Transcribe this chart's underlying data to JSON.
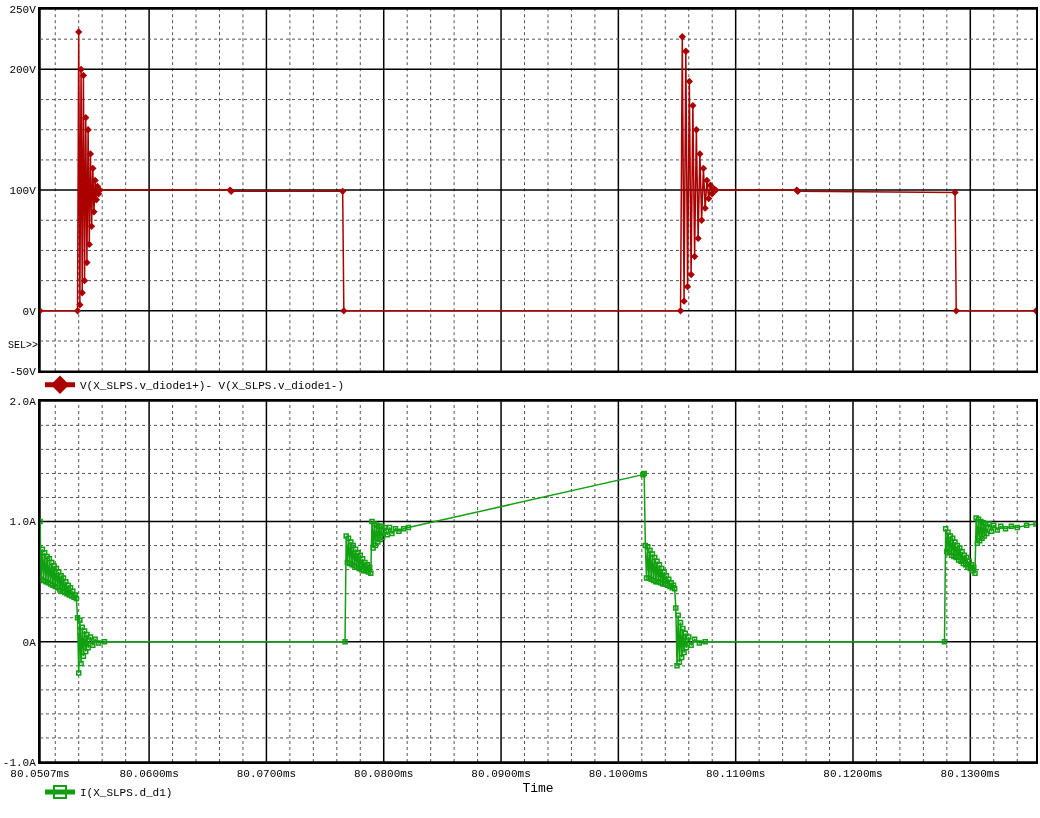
{
  "chart_data": [
    {
      "type": "line",
      "marker": "diamond",
      "legend": "bottom left",
      "grid": true,
      "tick_labels": "y",
      "annotations": [
        "SEL>>"
      ],
      "x": [
        80.0507,
        80.0539,
        80.054,
        80.0541,
        80.0542,
        80.0543,
        80.0544,
        80.0545,
        80.0546,
        80.0547,
        80.0548,
        80.0549,
        80.055,
        80.0551,
        80.0552,
        80.0553,
        80.0554,
        80.0555,
        80.0556,
        80.0557,
        80.0558,
        80.0669,
        80.067,
        80.0765,
        80.0766,
        80.1053,
        80.10545,
        80.1056,
        80.10575,
        80.1059,
        80.10605,
        80.1062,
        80.10635,
        80.1065,
        80.10665,
        80.1068,
        80.10695,
        80.1071,
        80.10725,
        80.1074,
        80.10755,
        80.1077,
        80.10785,
        80.108,
        80.10815,
        80.1083,
        80.1152,
        80.1153,
        80.1287,
        80.1288,
        80.1356
      ],
      "series": [
        {
          "name": "V(X_SLPS.v_diode1+)- V(X_SLPS.v_diode1-)",
          "color": "#aa0000",
          "values": [
            0,
            0,
            231,
            5,
            200,
            15,
            195,
            25,
            160,
            40,
            150,
            55,
            130,
            70,
            118,
            82,
            108,
            92,
            103,
            97,
            100,
            100,
            99,
            99,
            0,
            0,
            227,
            8,
            215,
            20,
            190,
            30,
            170,
            45,
            150,
            60,
            130,
            75,
            118,
            85,
            108,
            93,
            104,
            97,
            101,
            100,
            100,
            99,
            98,
            0,
            0
          ]
        }
      ],
      "xlim": [
        80.0507,
        80.1356
      ],
      "xticks": [
        80.0507,
        {
          "value": 80.052,
          "label": null
        },
        {
          "value": 80.054,
          "label": null
        },
        {
          "value": 80.056,
          "label": null
        },
        {
          "value": 80.058,
          "label": null
        },
        80.06,
        {
          "value": 80.062,
          "label": null
        },
        {
          "value": 80.064,
          "label": null
        },
        {
          "value": 80.066,
          "label": null
        },
        {
          "value": 80.068,
          "label": null
        },
        80.07,
        {
          "value": 80.072,
          "label": null
        },
        {
          "value": 80.074,
          "label": null
        },
        {
          "value": 80.076,
          "label": null
        },
        {
          "value": 80.078,
          "label": null
        },
        80.08,
        {
          "value": 80.082,
          "label": null
        },
        {
          "value": 80.084,
          "label": null
        },
        {
          "value": 80.086,
          "label": null
        },
        {
          "value": 80.088,
          "label": null
        },
        80.09,
        {
          "value": 80.092,
          "label": null
        },
        {
          "value": 80.094,
          "label": null
        },
        {
          "value": 80.096,
          "label": null
        },
        {
          "value": 80.098,
          "label": null
        },
        80.1,
        {
          "value": 80.102,
          "label": null
        },
        {
          "value": 80.104,
          "label": null
        },
        {
          "value": 80.106,
          "label": null
        },
        {
          "value": 80.108,
          "label": null
        },
        80.11,
        {
          "value": 80.112,
          "label": null
        },
        {
          "value": 80.114,
          "label": null
        },
        {
          "value": 80.116,
          "label": null
        },
        {
          "value": 80.118,
          "label": null
        },
        80.12,
        {
          "value": 80.122,
          "label": null
        },
        {
          "value": 80.124,
          "label": null
        },
        {
          "value": 80.126,
          "label": null
        },
        {
          "value": 80.128,
          "label": null
        },
        80.13,
        {
          "value": 80.132,
          "label": null
        },
        {
          "value": 80.134,
          "label": null
        }
      ],
      "ylim": [
        -50,
        250
      ],
      "yticks": [
        {
          "value": -50,
          "label": "-50V"
        },
        {
          "value": -25,
          "label": null
        },
        {
          "value": 0,
          "label": "0V"
        },
        {
          "value": 25,
          "label": null
        },
        {
          "value": 50,
          "label": null
        },
        {
          "value": 75,
          "label": null
        },
        {
          "value": 100,
          "label": "100V"
        },
        {
          "value": 125,
          "label": null
        },
        {
          "value": 150,
          "label": null
        },
        {
          "value": 175,
          "label": null
        },
        {
          "value": 200,
          "label": "200V"
        },
        {
          "value": 225,
          "label": null
        },
        {
          "value": 250,
          "label": "250V"
        }
      ]
    },
    {
      "type": "line",
      "marker": "square",
      "legend": "bottom left",
      "grid": true,
      "xlabel": "Time",
      "x": [
        80.0507,
        80.0508,
        80.0509,
        80.051,
        80.0511,
        80.0512,
        80.0513,
        80.0514,
        80.0515,
        80.0516,
        80.0517,
        80.0518,
        80.0519,
        80.052,
        80.0521,
        80.0522,
        80.0523,
        80.0524,
        80.0525,
        80.0526,
        80.0527,
        80.0528,
        80.0529,
        80.053,
        80.0531,
        80.0532,
        80.0533,
        80.0534,
        80.0535,
        80.0536,
        80.0537,
        80.0538,
        80.0539,
        80.054,
        80.0541,
        80.0542,
        80.0543,
        80.0544,
        80.0545,
        80.0546,
        80.0547,
        80.0548,
        80.055,
        80.0552,
        80.0554,
        80.0557,
        80.0562,
        80.0767,
        80.0768,
        80.0769,
        80.077,
        80.0771,
        80.0772,
        80.0773,
        80.0774,
        80.0775,
        80.0776,
        80.0777,
        80.0778,
        80.0779,
        80.078,
        80.0781,
        80.0782,
        80.0783,
        80.0784,
        80.0785,
        80.0786,
        80.0787,
        80.0788,
        80.0789,
        80.079,
        80.0791,
        80.0792,
        80.0793,
        80.0794,
        80.0795,
        80.0796,
        80.0797,
        80.0798,
        80.0799,
        80.0801,
        80.0803,
        80.0805,
        80.0807,
        80.081,
        80.0813,
        80.0817,
        80.0821,
        80.1021,
        80.1022,
        80.1023,
        80.1024,
        80.1025,
        80.1026,
        80.1027,
        80.1028,
        80.1029,
        80.103,
        80.1031,
        80.1032,
        80.1033,
        80.1034,
        80.1035,
        80.1036,
        80.1037,
        80.1038,
        80.1039,
        80.104,
        80.1041,
        80.1042,
        80.1043,
        80.1044,
        80.1045,
        80.1046,
        80.1047,
        80.1048,
        80.1049,
        80.105,
        80.1051,
        80.1052,
        80.1053,
        80.1054,
        80.1055,
        80.1056,
        80.1057,
        80.1058,
        80.106,
        80.1062,
        80.1065,
        80.1069,
        80.1074,
        80.1278,
        80.1279,
        80.128,
        80.1281,
        80.1282,
        80.1283,
        80.1284,
        80.1285,
        80.1286,
        80.1287,
        80.1288,
        80.1289,
        80.129,
        80.1291,
        80.1292,
        80.1293,
        80.1294,
        80.1295,
        80.1296,
        80.1297,
        80.1298,
        80.1299,
        80.13,
        80.1301,
        80.1302,
        80.1303,
        80.1304,
        80.1305,
        80.1306,
        80.1307,
        80.1308,
        80.1309,
        80.131,
        80.1311,
        80.1312,
        80.1313,
        80.1314,
        80.1316,
        80.1318,
        80.132,
        80.1323,
        80.1326,
        80.133,
        80.1335,
        80.134,
        80.1348,
        80.1356
      ],
      "series": [
        {
          "name": "I(X_SLPS.d_d1)",
          "color": "#10a010",
          "values": [
            1.0,
            0.52,
            0.77,
            0.51,
            0.74,
            0.5,
            0.71,
            0.49,
            0.69,
            0.48,
            0.66,
            0.47,
            0.63,
            0.46,
            0.61,
            0.45,
            0.58,
            0.43,
            0.55,
            0.42,
            0.53,
            0.41,
            0.5,
            0.4,
            0.47,
            0.39,
            0.45,
            0.38,
            0.42,
            0.37,
            0.39,
            0.36,
            0.2,
            -0.26,
            0.18,
            -0.18,
            0.12,
            -0.12,
            0.09,
            -0.08,
            0.06,
            -0.05,
            0.04,
            -0.03,
            0.02,
            -0.01,
            0,
            0,
            0.88,
            0.66,
            0.86,
            0.65,
            0.83,
            0.64,
            0.8,
            0.63,
            0.77,
            0.62,
            0.74,
            0.61,
            0.72,
            0.6,
            0.69,
            0.59,
            0.66,
            0.59,
            0.64,
            0.58,
            0.62,
            0.57,
            1.0,
            0.78,
            0.98,
            0.8,
            0.97,
            0.83,
            0.96,
            0.85,
            0.96,
            0.87,
            0.95,
            0.89,
            0.95,
            0.9,
            0.94,
            0.92,
            0.94,
            0.95,
            1.39,
            1.4,
            0.8,
            0.53,
            0.79,
            0.53,
            0.76,
            0.52,
            0.73,
            0.51,
            0.7,
            0.5,
            0.67,
            0.5,
            0.64,
            0.49,
            0.61,
            0.48,
            0.58,
            0.48,
            0.55,
            0.47,
            0.52,
            0.46,
            0.49,
            0.45,
            0.47,
            0.44,
            0.28,
            -0.2,
            0.22,
            -0.17,
            0.16,
            -0.13,
            0.11,
            -0.09,
            0.07,
            -0.05,
            0.04,
            -0.03,
            0.02,
            -0.01,
            0,
            0,
            0.94,
            0.75,
            0.91,
            0.74,
            0.88,
            0.72,
            0.86,
            0.71,
            0.83,
            0.7,
            0.8,
            0.68,
            0.78,
            0.67,
            0.75,
            0.65,
            0.72,
            0.64,
            0.7,
            0.62,
            0.67,
            0.61,
            0.64,
            0.59,
            0.62,
            0.57,
            1.03,
            0.82,
            1.02,
            0.84,
            1.0,
            0.86,
            0.99,
            0.88,
            0.98,
            0.9,
            0.98,
            0.92,
            0.97,
            0.93,
            0.96,
            0.94,
            0.96,
            0.95,
            0.97,
            0.98
          ]
        }
      ],
      "xlim": [
        80.0507,
        80.1356
      ],
      "xticks": [
        {
          "value": 80.0507,
          "label": "80.0507ms"
        },
        {
          "value": 80.052,
          "label": null
        },
        {
          "value": 80.054,
          "label": null
        },
        {
          "value": 80.056,
          "label": null
        },
        {
          "value": 80.058,
          "label": null
        },
        {
          "value": 80.06,
          "label": "80.0600ms"
        },
        {
          "value": 80.062,
          "label": null
        },
        {
          "value": 80.064,
          "label": null
        },
        {
          "value": 80.066,
          "label": null
        },
        {
          "value": 80.068,
          "label": null
        },
        {
          "value": 80.07,
          "label": "80.0700ms"
        },
        {
          "value": 80.072,
          "label": null
        },
        {
          "value": 80.074,
          "label": null
        },
        {
          "value": 80.076,
          "label": null
        },
        {
          "value": 80.078,
          "label": null
        },
        {
          "value": 80.08,
          "label": "80.0800ms"
        },
        {
          "value": 80.082,
          "label": null
        },
        {
          "value": 80.084,
          "label": null
        },
        {
          "value": 80.086,
          "label": null
        },
        {
          "value": 80.088,
          "label": null
        },
        {
          "value": 80.09,
          "label": "80.0900ms"
        },
        {
          "value": 80.092,
          "label": null
        },
        {
          "value": 80.094,
          "label": null
        },
        {
          "value": 80.096,
          "label": null
        },
        {
          "value": 80.098,
          "label": null
        },
        {
          "value": 80.1,
          "label": "80.1000ms"
        },
        {
          "value": 80.102,
          "label": null
        },
        {
          "value": 80.104,
          "label": null
        },
        {
          "value": 80.106,
          "label": null
        },
        {
          "value": 80.108,
          "label": null
        },
        {
          "value": 80.11,
          "label": "80.1100ms"
        },
        {
          "value": 80.112,
          "label": null
        },
        {
          "value": 80.114,
          "label": null
        },
        {
          "value": 80.116,
          "label": null
        },
        {
          "value": 80.118,
          "label": null
        },
        {
          "value": 80.12,
          "label": "80.1200ms"
        },
        {
          "value": 80.122,
          "label": null
        },
        {
          "value": 80.124,
          "label": null
        },
        {
          "value": 80.126,
          "label": null
        },
        {
          "value": 80.128,
          "label": null
        },
        {
          "value": 80.13,
          "label": "80.1300ms"
        },
        {
          "value": 80.132,
          "label": null
        },
        {
          "value": 80.134,
          "label": null
        }
      ],
      "ylim": [
        -1.0,
        2.0
      ],
      "yticks": [
        {
          "value": -1.0,
          "label": "-1.0A"
        },
        {
          "value": -0.8,
          "label": null
        },
        {
          "value": -0.6,
          "label": null
        },
        {
          "value": -0.4,
          "label": null
        },
        {
          "value": -0.2,
          "label": null
        },
        {
          "value": 0,
          "label": "0A"
        },
        {
          "value": 0.2,
          "label": null
        },
        {
          "value": 0.4,
          "label": null
        },
        {
          "value": 0.6,
          "label": null
        },
        {
          "value": 0.8,
          "label": null
        },
        {
          "value": 1.0,
          "label": "1.0A"
        },
        {
          "value": 1.2,
          "label": null
        },
        {
          "value": 1.4,
          "label": null
        },
        {
          "value": 1.6,
          "label": null
        },
        {
          "value": 1.8,
          "label": null
        },
        {
          "value": 2.0,
          "label": "2.0A"
        }
      ]
    }
  ]
}
